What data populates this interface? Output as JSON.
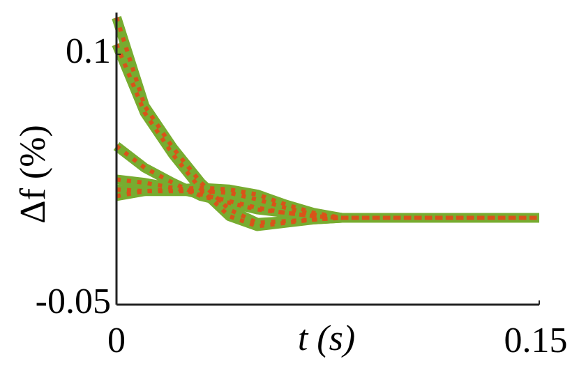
{
  "chart_data": {
    "type": "line",
    "xlabel": "t (s)",
    "ylabel": "Δf (%)",
    "x": [
      0,
      0.01,
      0.02,
      0.03,
      0.04,
      0.05,
      0.06,
      0.07,
      0.08,
      0.09,
      0.1,
      0.11,
      0.12,
      0.13,
      0.14,
      0.15
    ],
    "series": [
      {
        "color": "#77ac30",
        "overlay_color": "#d95319",
        "values": [
          0.122,
          0.069,
          0.044,
          0.023,
          0.007,
          -0.001,
          0.0,
          0.001,
          0.002,
          0.002,
          0.002,
          0.002,
          0.002,
          0.002,
          0.002,
          0.002
        ]
      },
      {
        "color": "#77ac30",
        "overlay_color": "#d95319",
        "values": [
          0.106,
          0.065,
          0.04,
          0.019,
          0.003,
          -0.003,
          -0.001,
          0.001,
          0.002,
          0.002,
          0.002,
          0.002,
          0.002,
          0.002,
          0.002,
          0.002
        ]
      },
      {
        "color": "#77ac30",
        "overlay_color": "#d95319",
        "values": [
          0.045,
          0.032,
          0.023,
          0.015,
          0.011,
          0.007,
          0.005,
          0.003,
          0.002,
          0.002,
          0.002,
          0.002,
          0.002,
          0.002,
          0.002,
          0.002
        ]
      },
      {
        "color": "#77ac30",
        "overlay_color": "#d95319",
        "values": [
          0.025,
          0.023,
          0.02,
          0.016,
          0.012,
          0.008,
          0.005,
          0.003,
          0.002,
          0.002,
          0.002,
          0.002,
          0.002,
          0.002,
          0.002,
          0.002
        ]
      },
      {
        "color": "#77ac30",
        "overlay_color": "#d95319",
        "values": [
          0.019,
          0.018,
          0.018,
          0.018,
          0.017,
          0.013,
          0.008,
          0.004,
          0.002,
          0.002,
          0.002,
          0.002,
          0.002,
          0.002,
          0.002,
          0.002
        ]
      },
      {
        "color": "#77ac30",
        "overlay_color": "#d95319",
        "values": [
          0.015,
          0.018,
          0.019,
          0.02,
          0.019,
          0.016,
          0.01,
          0.005,
          0.002,
          0.002,
          0.002,
          0.002,
          0.002,
          0.002,
          0.002,
          0.002
        ]
      }
    ],
    "xlim": [
      0,
      0.15
    ],
    "xticks": [
      0,
      0.15
    ],
    "ylim": [
      -0.05,
      0.125
    ],
    "yticks": [
      -0.05,
      0.1
    ]
  }
}
